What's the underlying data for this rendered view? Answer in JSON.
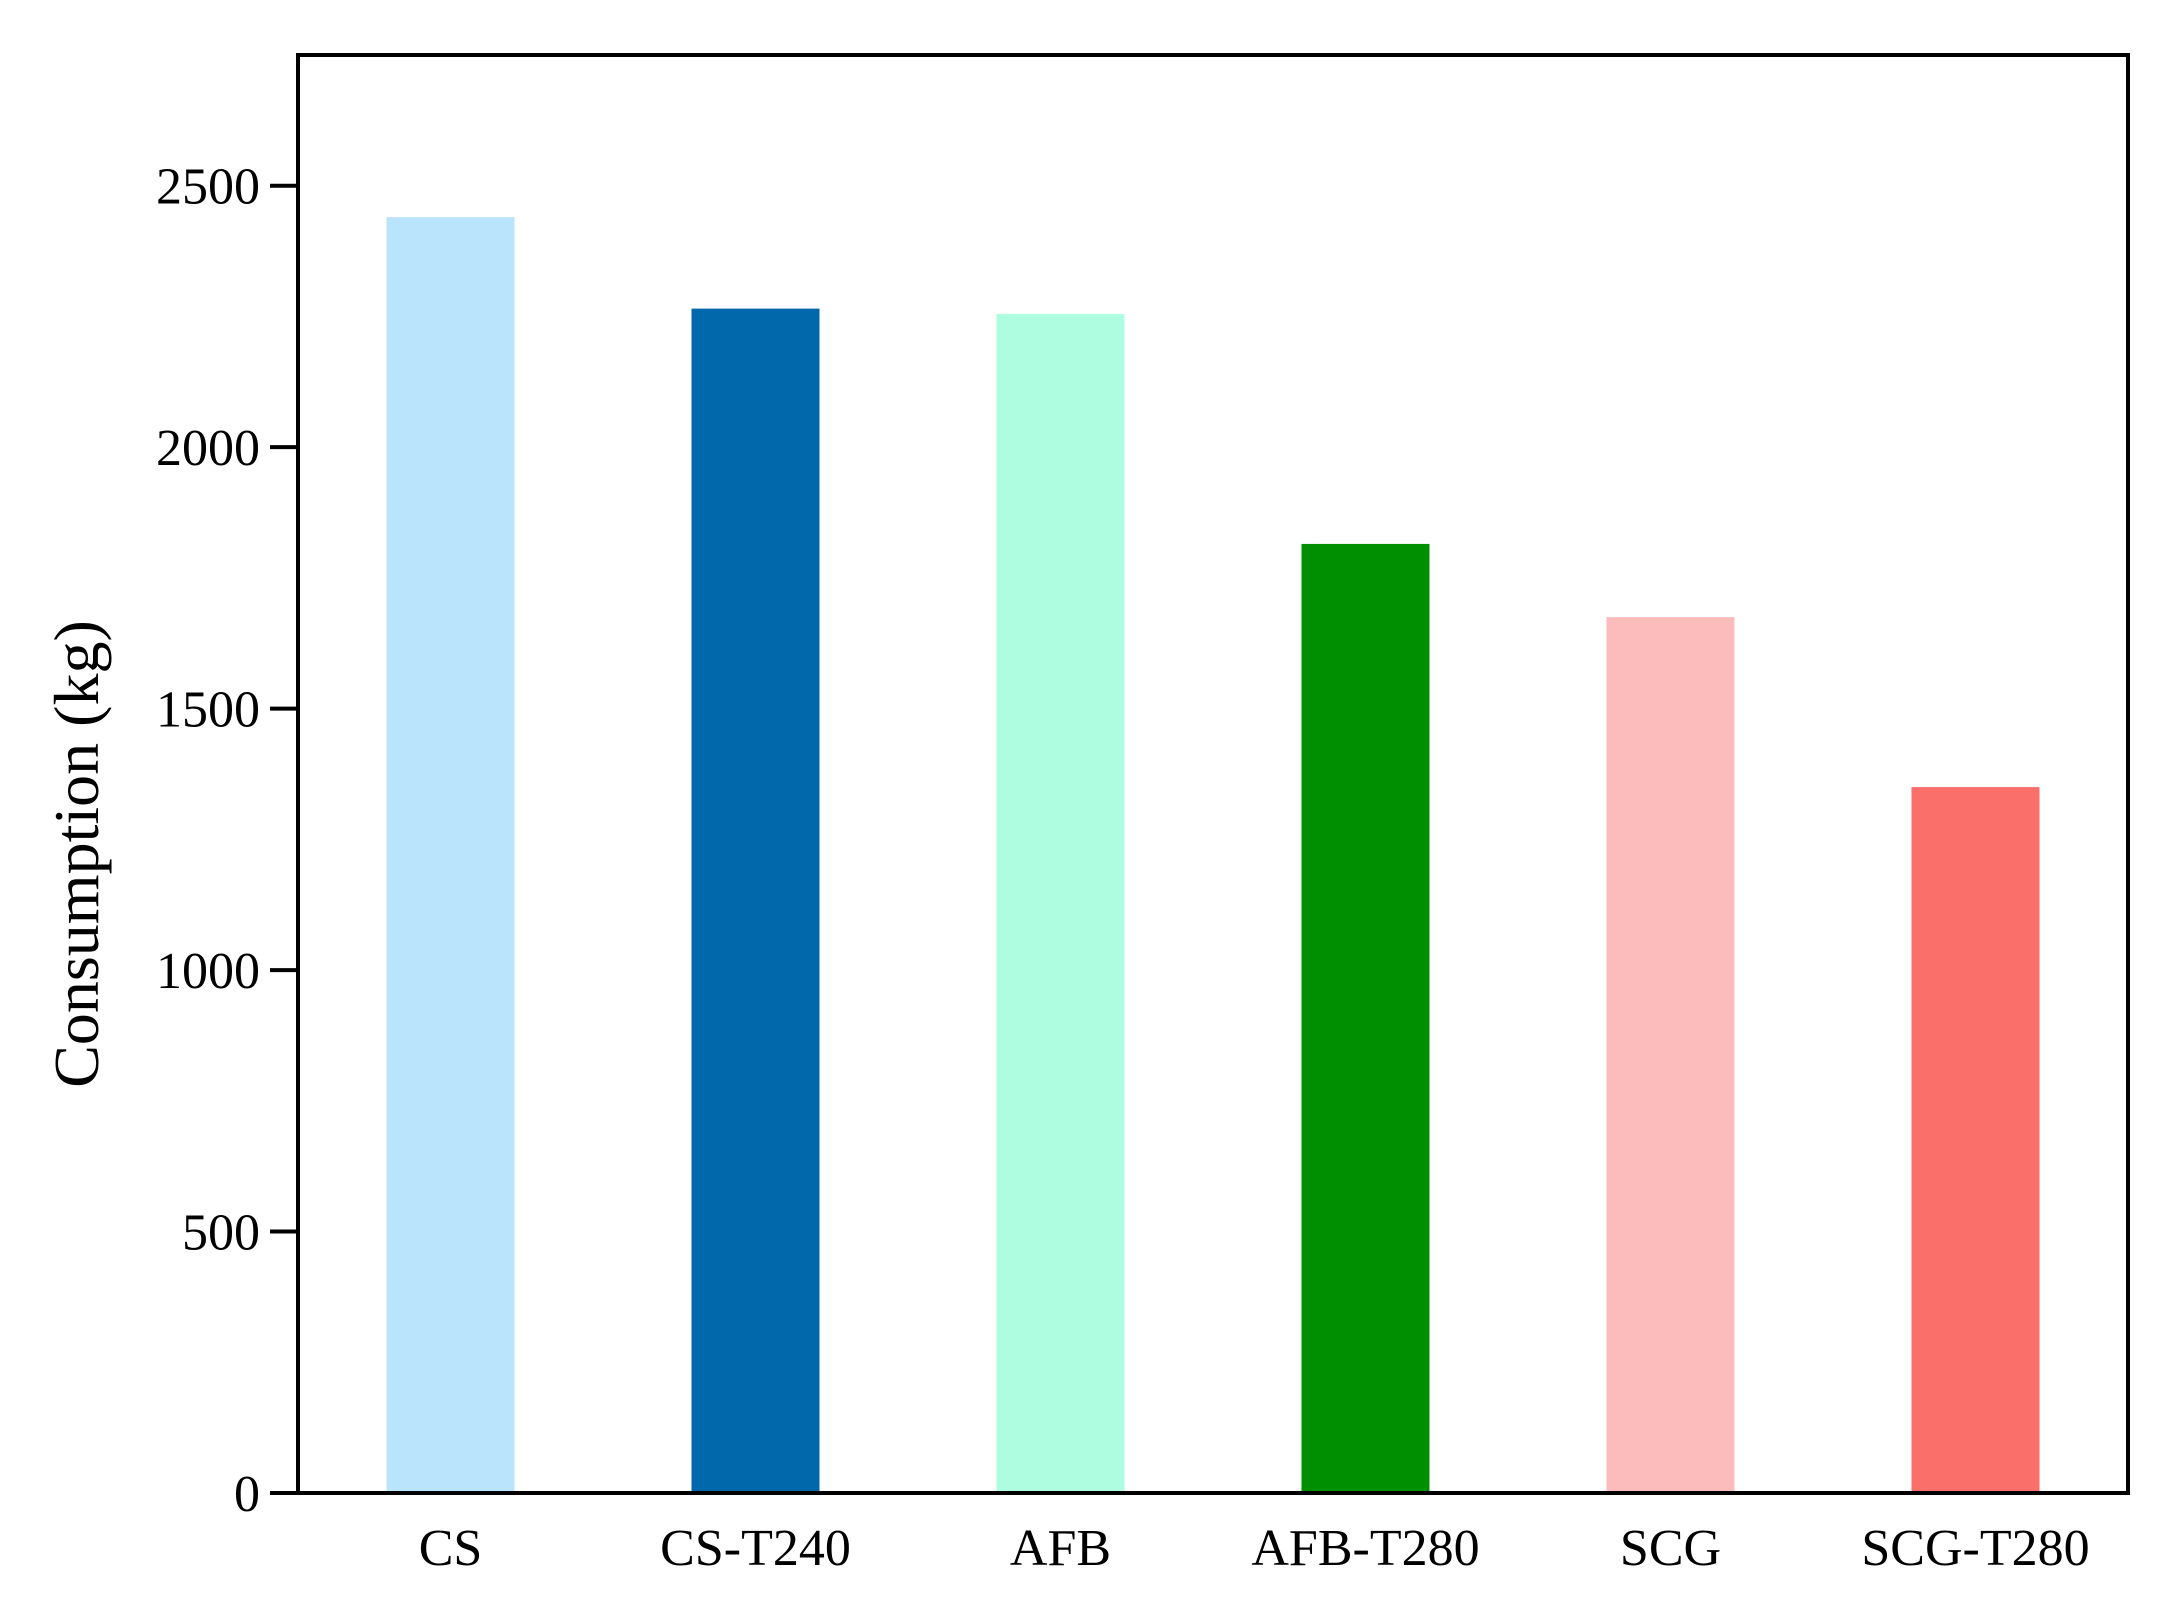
{
  "chart_data": {
    "type": "bar",
    "title": "",
    "xlabel": "",
    "ylabel": "Consumption (kg)",
    "ylim": [
      0,
      2750
    ],
    "yticks": [
      0,
      500,
      1000,
      1500,
      2000,
      2500
    ],
    "grid": false,
    "legend": "none",
    "categories": [
      "CS",
      "CS-T240",
      "AFB",
      "AFB-T280",
      "SCG",
      "SCG-T280"
    ],
    "values": [
      2440,
      2265,
      2255,
      1815,
      1675,
      1350
    ],
    "colors": [
      "#b9e4fb",
      "#0068ab",
      "#aefde0",
      "#008f00",
      "#fbbcbb",
      "#fb6f6a"
    ]
  }
}
